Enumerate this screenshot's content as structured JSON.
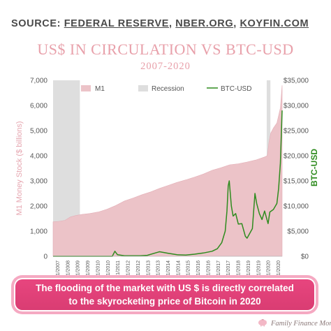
{
  "source": {
    "prefix": "SOURCE:",
    "items": [
      "FEDERAL RESERVE",
      "NBER.ORG",
      "KOYFIN.COM"
    ]
  },
  "footer": {
    "callout_line1": "The flooding of the market with US $ is directly correlated",
    "callout_line2": "to the skyrocketing price of Bitcoin in 2020",
    "brand": "Family Finance Mom"
  },
  "colors": {
    "m1_fill": "#ecc3c8",
    "recession": "#dedede",
    "btc_line": "#2e8b1e",
    "title": "#e8a0aa",
    "callout": "#e0427a"
  },
  "chart_data": {
    "type": "area",
    "title": "US$ IN CIRCULATION VS BTC-USD",
    "subtitle": "2007-2020",
    "ylabel_left": "M1 Money Stock ($ billions)",
    "ylabel_right": "BTC-USD",
    "ylim_left": [
      0,
      7000
    ],
    "ylim_right": [
      0,
      35000
    ],
    "left_ticks": [
      "0",
      "1,000",
      "2,000",
      "3,000",
      "4,000",
      "5,000",
      "6,000",
      "7,000"
    ],
    "right_ticks": [
      "$0",
      "$5,000",
      "$10,000",
      "$15,000",
      "$20,000",
      "$25,000",
      "$30,000",
      "$35,000"
    ],
    "x_tick_labels": [
      "12/1/2007",
      "7/1/2008",
      "2/1/2009",
      "9/1/2009",
      "4/1/2010",
      "11/1/2010",
      "6/1/2011",
      "1/1/2012",
      "8/1/2012",
      "3/1/2013",
      "10/1/2013",
      "5/1/2014",
      "12/1/2014",
      "7/1/2015",
      "2/1/2016",
      "9/1/2016",
      "4/1/2017",
      "11/1/2017",
      "6/1/2018",
      "1/1/2019",
      "8/1/2019",
      "3/1/2020",
      "10/1/2020"
    ],
    "legend": [
      "M1",
      "Recession",
      "BTC-USD"
    ],
    "legend_position": "top",
    "recessions": [
      {
        "start": 2007.92,
        "end": 2009.45
      },
      {
        "start": 2020.12,
        "end": 2020.33
      }
    ],
    "series": [
      {
        "name": "M1",
        "kind": "area",
        "axis": "left",
        "x": [
          2007.92,
          2008.25,
          2008.6,
          2008.9,
          2009.2,
          2009.6,
          2010.0,
          2010.5,
          2011.0,
          2011.5,
          2012.0,
          2012.5,
          2013.0,
          2013.5,
          2014.0,
          2014.5,
          2015.0,
          2015.5,
          2016.0,
          2016.5,
          2017.0,
          2017.5,
          2018.0,
          2018.5,
          2019.0,
          2019.5,
          2020.0,
          2020.15,
          2020.25,
          2020.35,
          2020.5,
          2020.7,
          2020.9,
          2021.0
        ],
        "values": [
          1370,
          1390,
          1430,
          1560,
          1620,
          1670,
          1700,
          1760,
          1870,
          2020,
          2200,
          2320,
          2450,
          2560,
          2700,
          2820,
          2940,
          3040,
          3150,
          3270,
          3420,
          3520,
          3640,
          3680,
          3750,
          3830,
          3950,
          4000,
          4550,
          4900,
          5100,
          5300,
          5900,
          6800
        ]
      },
      {
        "name": "BTC-USD",
        "kind": "line",
        "axis": "right",
        "x": [
          2007.92,
          2010.5,
          2011.3,
          2011.45,
          2011.6,
          2012.0,
          2012.9,
          2013.3,
          2013.9,
          2014.0,
          2014.5,
          2015.0,
          2015.5,
          2016.0,
          2016.5,
          2017.0,
          2017.3,
          2017.55,
          2017.75,
          2017.85,
          2017.92,
          2017.98,
          2018.1,
          2018.2,
          2018.35,
          2018.5,
          2018.7,
          2018.9,
          2019.0,
          2019.3,
          2019.45,
          2019.55,
          2019.7,
          2019.85,
          2020.0,
          2020.2,
          2020.3,
          2020.5,
          2020.7,
          2020.8,
          2020.9,
          2021.0
        ],
        "values": [
          0,
          0,
          0,
          1000,
          300,
          100,
          100,
          200,
          800,
          900,
          600,
          300,
          250,
          420,
          650,
          1000,
          1500,
          2700,
          5000,
          9000,
          14000,
          15000,
          10000,
          8000,
          8500,
          6400,
          6500,
          4000,
          3600,
          5500,
          12500,
          10500,
          8500,
          7300,
          9000,
          6500,
          8800,
          9300,
          10500,
          13500,
          18500,
          29000
        ]
      }
    ]
  }
}
